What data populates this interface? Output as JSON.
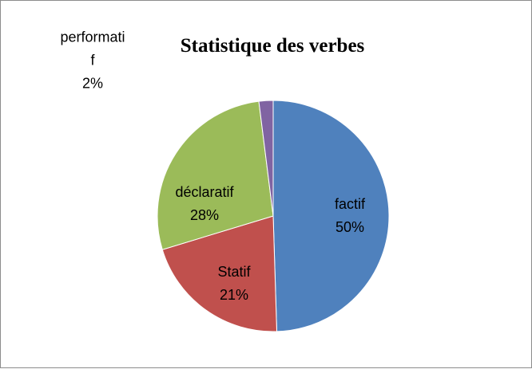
{
  "chart_data": {
    "type": "pie",
    "title": "Statistique des verbes",
    "categories": [
      "factif",
      "Statif",
      "déclaratif",
      "performatif"
    ],
    "values": [
      50,
      21,
      28,
      2
    ],
    "value_labels": [
      "50%",
      "21%",
      "28%",
      "2%"
    ],
    "colors": [
      "#4f81bd",
      "#c0504d",
      "#9bbb59",
      "#8064a2"
    ]
  }
}
